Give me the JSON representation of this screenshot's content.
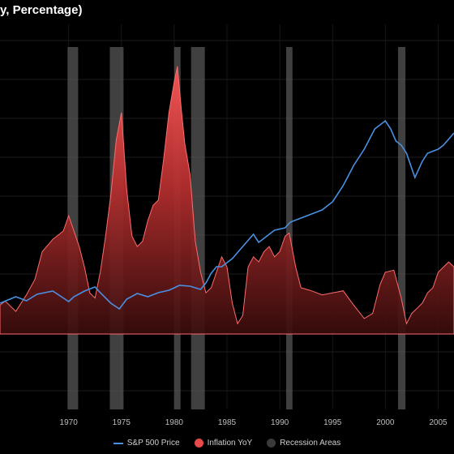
{
  "chart_data": {
    "type": "line",
    "title": "y, Percentage)",
    "x_ticks": [
      1970,
      1975,
      1980,
      1985,
      1990,
      1995,
      2000,
      2005
    ],
    "xlim": [
      1963.5,
      2006.5
    ],
    "colors": {
      "sp500": "#4a90e2",
      "inflation": "#e84a4a",
      "recession": "#555555"
    },
    "recessions": [
      [
        1969.9,
        1970.9
      ],
      [
        1973.9,
        1975.2
      ],
      [
        1980.0,
        1980.6
      ],
      [
        1981.6,
        1982.9
      ],
      [
        1990.6,
        1991.2
      ],
      [
        2001.2,
        2001.9
      ]
    ],
    "series": [
      {
        "name": "Inflation YoY",
        "style": "area",
        "x": [
          1963.5,
          1964.0,
          1965.0,
          1966.0,
          1966.8,
          1967.5,
          1968.5,
          1969.5,
          1970.0,
          1970.5,
          1971.0,
          1971.5,
          1972.0,
          1972.5,
          1973.0,
          1973.5,
          1974.0,
          1974.5,
          1975.0,
          1975.5,
          1976.0,
          1976.5,
          1977.0,
          1977.5,
          1978.0,
          1978.5,
          1979.0,
          1979.5,
          1980.0,
          1980.3,
          1980.7,
          1981.0,
          1981.5,
          1982.0,
          1982.5,
          1983.0,
          1983.5,
          1984.0,
          1984.5,
          1985.0,
          1985.5,
          1986.0,
          1986.5,
          1987.0,
          1987.5,
          1988.0,
          1988.5,
          1989.0,
          1989.5,
          1990.0,
          1990.5,
          1990.9,
          1991.5,
          1992.0,
          1993.0,
          1994.0,
          1995.0,
          1996.0,
          1997.0,
          1998.0,
          1998.8,
          1999.5,
          2000.0,
          2000.8,
          2001.5,
          2002.0,
          2002.5,
          2003.0,
          2003.5,
          2004.0,
          2004.5,
          2005.0,
          2005.5,
          2006.0,
          2006.5
        ],
        "values": [
          2.8,
          3.2,
          2.2,
          3.8,
          5.3,
          8.0,
          9.2,
          10.0,
          11.5,
          10.0,
          8.5,
          6.5,
          4.0,
          3.5,
          6.0,
          9.5,
          13.5,
          18.8,
          21.5,
          14.0,
          9.5,
          8.5,
          9.0,
          11.0,
          12.5,
          13.0,
          17.0,
          21.5,
          24.5,
          26.0,
          21.5,
          18.5,
          15.5,
          9.0,
          6.0,
          4.0,
          4.5,
          6.0,
          7.5,
          6.5,
          3.0,
          1.0,
          1.8,
          6.5,
          7.5,
          7.0,
          8.0,
          8.5,
          7.5,
          8.0,
          9.5,
          9.8,
          6.5,
          4.5,
          4.2,
          3.8,
          4.0,
          4.2,
          2.8,
          1.5,
          2.0,
          4.8,
          6.0,
          6.2,
          3.5,
          1.0,
          2.0,
          2.5,
          3.0,
          4.0,
          4.5,
          6.0,
          6.5,
          7.0,
          6.5
        ]
      },
      {
        "name": "S&P 500 Price",
        "style": "line",
        "x": [
          1963.5,
          1965.0,
          1966.0,
          1967.0,
          1968.5,
          1970.0,
          1970.5,
          1971.5,
          1972.5,
          1973.0,
          1974.0,
          1974.8,
          1975.5,
          1976.5,
          1977.5,
          1978.5,
          1979.5,
          1980.0,
          1980.5,
          1981.5,
          1982.5,
          1983.0,
          1983.5,
          1984.0,
          1984.5,
          1985.5,
          1986.5,
          1987.5,
          1988.0,
          1988.5,
          1989.5,
          1990.5,
          1991.0,
          1992.0,
          1993.0,
          1994.0,
          1995.0,
          1996.0,
          1997.0,
          1998.0,
          1999.0,
          2000.0,
          2000.5,
          2001.0,
          2001.5,
          2002.0,
          2002.8,
          2003.5,
          2004.0,
          2005.0,
          2005.5,
          2006.5
        ],
        "values": [
          3.5,
          4.3,
          3.8,
          4.6,
          5.0,
          3.7,
          4.3,
          5.0,
          5.5,
          4.8,
          3.5,
          2.8,
          4.0,
          4.7,
          4.3,
          4.8,
          5.1,
          5.4,
          5.7,
          5.6,
          5.2,
          6.0,
          7.2,
          8.0,
          8.0,
          9.0,
          10.5,
          12.0,
          11.0,
          11.5,
          12.5,
          12.8,
          13.5,
          14.0,
          14.5,
          15.0,
          16.0,
          18.0,
          20.5,
          22.5,
          25.0,
          26.0,
          25.0,
          23.5,
          23.0,
          22.0,
          19.0,
          21.0,
          22.0,
          22.5,
          23.0,
          24.5
        ]
      }
    ],
    "legend": [
      {
        "label": "S&P 500 Price",
        "marker": "line",
        "color": "#4a90e2"
      },
      {
        "label": "Inflation YoY",
        "marker": "dot",
        "color": "#e84a4a"
      },
      {
        "label": "Recession Areas",
        "marker": "dot",
        "color": "#3a3a3a"
      }
    ],
    "grid": true,
    "legend_position": "bottom"
  }
}
